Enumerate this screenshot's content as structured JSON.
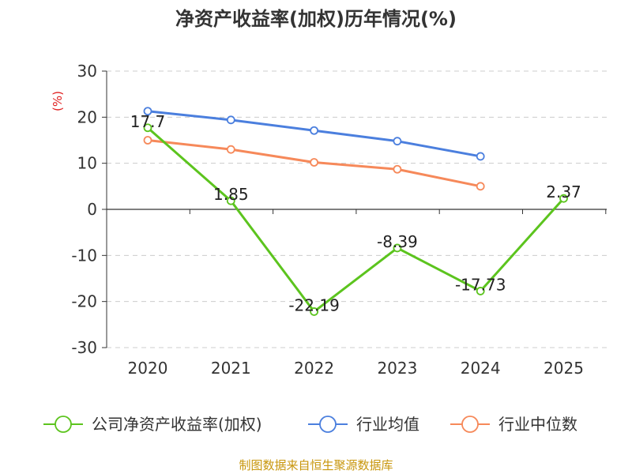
{
  "chart_data": {
    "type": "line",
    "title": "净资产收益率(加权)历年情况(%)",
    "ylabel": "(%)",
    "xlabel": "",
    "categories": [
      "2020",
      "2021",
      "2022",
      "2023",
      "2024",
      "2025"
    ],
    "ylim": [
      -30,
      30
    ],
    "yticks": [
      30,
      20,
      10,
      0,
      -10,
      -20,
      -30
    ],
    "grid": true,
    "legend_position": "bottom",
    "series": [
      {
        "name": "公司净资产收益率(加权)",
        "color": "#5cc41e",
        "values": [
          17.7,
          1.85,
          -22.19,
          -8.39,
          -17.73,
          2.37
        ],
        "labels": [
          "17.7",
          "1.85",
          "-22.19",
          "-8.39",
          "-17.73",
          "2.37"
        ]
      },
      {
        "name": "行业均值",
        "color": "#4b7fde",
        "values": [
          21.3,
          19.4,
          17.1,
          14.8,
          11.5,
          null
        ]
      },
      {
        "name": "行业中位数",
        "color": "#f6895a",
        "values": [
          15.0,
          13.0,
          10.2,
          8.7,
          5.0,
          null
        ]
      }
    ]
  },
  "source": "制图数据来自恒生聚源数据库"
}
